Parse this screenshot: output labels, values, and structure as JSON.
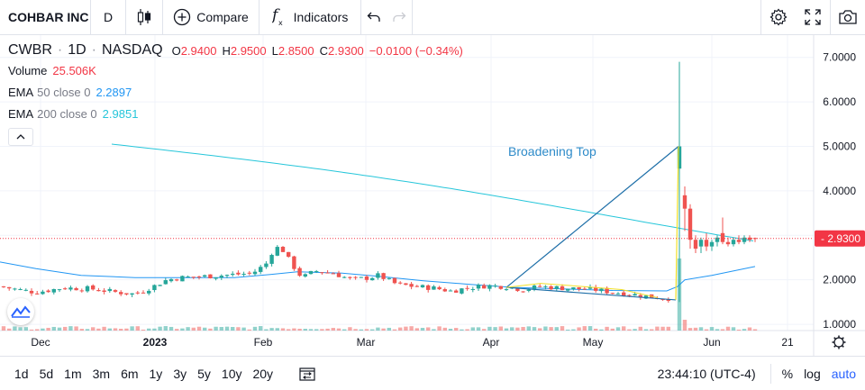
{
  "toolbar": {
    "symbol": "COHBAR INC",
    "interval": "D",
    "compare_label": "Compare",
    "indicators_label": "Indicators",
    "icons": [
      "candles-icon",
      "plus-circle-icon",
      "fx-icon",
      "undo-icon",
      "redo-icon",
      "gear-icon",
      "fullscreen-icon",
      "camera-icon"
    ]
  },
  "legend": {
    "ticker": "CWBR",
    "interval": "1D",
    "exchange": "NASDAQ",
    "ohlc": {
      "o_label": "O",
      "o": "2.9400",
      "h_label": "H",
      "h": "2.9500",
      "l_label": "L",
      "l": "2.8500",
      "c_label": "C",
      "c": "2.9300",
      "change": "−0.0100 (−0.34%)"
    },
    "volume_label": "Volume",
    "volume_value": "25.506K",
    "ema50_label": "EMA",
    "ema50_params": "50 close 0",
    "ema50_value": "2.2897",
    "ema200_label": "EMA",
    "ema200_params": "200 close 0",
    "ema200_value": "2.9851"
  },
  "colors": {
    "up": "#26a69a",
    "down": "#ef5350",
    "ema50": "#2196f3",
    "ema200": "#26c6da",
    "trend": "#1e6fa8",
    "yellow": "#f2e027",
    "price_tag": "#f23645"
  },
  "chart_data": {
    "type": "candlestick",
    "price_axis_labels": [
      "7.0000",
      "6.0000",
      "5.0000",
      "4.0000",
      "3.0000",
      "2.0000",
      "1.0000"
    ],
    "price_axis_values": [
      7,
      6,
      5,
      4,
      3,
      2,
      1
    ],
    "ylim": [
      0.86,
      7.5
    ],
    "last_price_label": "2.9300",
    "last_price": 2.93,
    "time_axis_labels": [
      "Dec",
      "2023",
      "Feb",
      "Mar",
      "Apr",
      "May",
      "Jun",
      "21"
    ],
    "annotation": "Broadening Top",
    "series": [
      {
        "name": "EMA 50",
        "values_note": "EMA line"
      },
      {
        "name": "EMA 200",
        "values_note": "EMA line"
      }
    ]
  },
  "bottombar": {
    "ranges": [
      "1d",
      "5d",
      "1m",
      "3m",
      "6m",
      "1y",
      "3y",
      "5y",
      "10y",
      "20y"
    ],
    "clock": "23:44:10 (UTC-4)",
    "percent_label": "%",
    "log_label": "log",
    "auto_label": "auto"
  }
}
